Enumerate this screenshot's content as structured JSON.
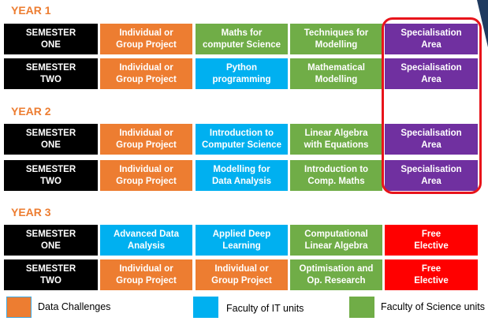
{
  "years": [
    {
      "label": "YEAR 1",
      "rows": [
        {
          "cells": [
            {
              "text": "SEMESTER\nONE",
              "color": "#000000"
            },
            {
              "text": "Individual or\nGroup Project",
              "color": "#ED7D31"
            },
            {
              "text": "Maths for\ncomputer Science",
              "color": "#70AD47"
            },
            {
              "text": "Techniques for\nModelling",
              "color": "#70AD47"
            },
            {
              "text": "Specialisation\nArea",
              "color": "#7030A0"
            }
          ]
        },
        {
          "cells": [
            {
              "text": "SEMESTER\nTWO",
              "color": "#000000"
            },
            {
              "text": "Individual or\nGroup Project",
              "color": "#ED7D31"
            },
            {
              "text": "Python\nprogramming",
              "color": "#00B0F0"
            },
            {
              "text": "Mathematical\nModelling",
              "color": "#70AD47"
            },
            {
              "text": "Specialisation\nArea",
              "color": "#7030A0"
            }
          ]
        }
      ]
    },
    {
      "label": "YEAR 2",
      "rows": [
        {
          "cells": [
            {
              "text": "SEMESTER\nONE",
              "color": "#000000"
            },
            {
              "text": "Individual or\nGroup Project",
              "color": "#ED7D31"
            },
            {
              "text": "Introduction to\nComputer Science",
              "color": "#00B0F0"
            },
            {
              "text": "Linear Algebra\nwith Equations",
              "color": "#70AD47"
            },
            {
              "text": "Specialisation\nArea",
              "color": "#7030A0"
            }
          ]
        },
        {
          "cells": [
            {
              "text": "SEMESTER\nTWO",
              "color": "#000000"
            },
            {
              "text": "Individual or\nGroup Project",
              "color": "#ED7D31"
            },
            {
              "text": "Modelling for\nData Analysis",
              "color": "#00B0F0"
            },
            {
              "text": "Introduction to\nComp. Maths",
              "color": "#70AD47"
            },
            {
              "text": "Specialisation\nArea",
              "color": "#7030A0"
            }
          ]
        }
      ]
    },
    {
      "label": "YEAR 3",
      "rows": [
        {
          "cells": [
            {
              "text": "SEMESTER\nONE",
              "color": "#000000"
            },
            {
              "text": "Advanced Data\nAnalysis",
              "color": "#00B0F0"
            },
            {
              "text": "Applied Deep\nLearning",
              "color": "#00B0F0"
            },
            {
              "text": "Computational\nLinear Algebra",
              "color": "#70AD47"
            },
            {
              "text": "Free\nElective",
              "color": "#FF0000"
            }
          ]
        },
        {
          "cells": [
            {
              "text": "SEMESTER\nTWO",
              "color": "#000000"
            },
            {
              "text": "Individual or\nGroup Project",
              "color": "#ED7D31"
            },
            {
              "text": "Individual or\nGroup Project",
              "color": "#ED7D31"
            },
            {
              "text": "Optimisation and\nOp. Research",
              "color": "#70AD47"
            },
            {
              "text": "Free\nElective",
              "color": "#FF0000"
            }
          ]
        }
      ]
    }
  ],
  "highlight_color": "#E8141B",
  "legend": [
    {
      "label": "Data Challenges",
      "color": "#ED7D31"
    },
    {
      "label": "Faculty of IT units",
      "color": "#00B0F0"
    },
    {
      "label": "Faculty of Science units",
      "color": "#70AD47"
    }
  ]
}
